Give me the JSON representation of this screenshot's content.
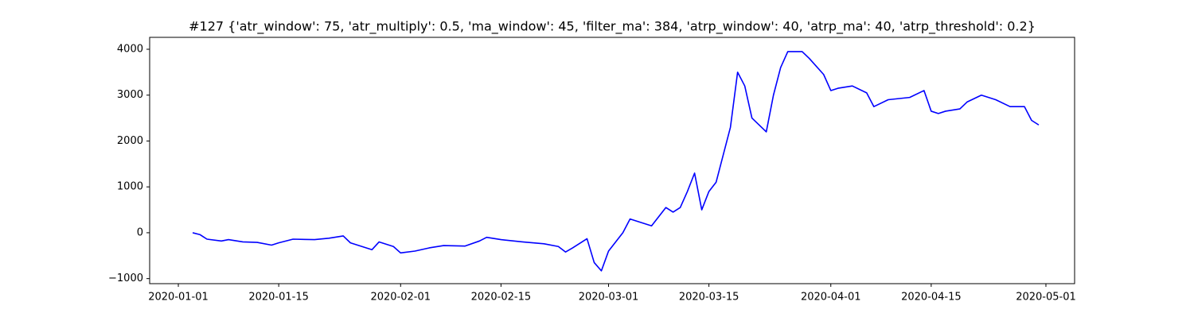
{
  "chart_data": {
    "type": "line",
    "title": "#127 {'atr_window': 75, 'atr_multiply': 0.5, 'ma_window': 45, 'filter_ma': 384, 'atrp_window': 40, 'atrp_ma': 40, 'atrp_threshold': 0.2}",
    "color": "#0000ff",
    "x": [
      "2020-01-03",
      "2020-01-04",
      "2020-01-05",
      "2020-01-07",
      "2020-01-08",
      "2020-01-10",
      "2020-01-12",
      "2020-01-14",
      "2020-01-15",
      "2020-01-17",
      "2020-01-20",
      "2020-01-22",
      "2020-01-24",
      "2020-01-25",
      "2020-01-28",
      "2020-01-29",
      "2020-01-31",
      "2020-02-01",
      "2020-02-03",
      "2020-02-05",
      "2020-02-07",
      "2020-02-10",
      "2020-02-12",
      "2020-02-13",
      "2020-02-15",
      "2020-02-18",
      "2020-02-21",
      "2020-02-23",
      "2020-02-24",
      "2020-02-25",
      "2020-02-27",
      "2020-02-28",
      "2020-02-29",
      "2020-03-01",
      "2020-03-03",
      "2020-03-04",
      "2020-03-05",
      "2020-03-07",
      "2020-03-09",
      "2020-03-10",
      "2020-03-11",
      "2020-03-12",
      "2020-03-13",
      "2020-03-14",
      "2020-03-15",
      "2020-03-16",
      "2020-03-17",
      "2020-03-18",
      "2020-03-19",
      "2020-03-20",
      "2020-03-21",
      "2020-03-23",
      "2020-03-24",
      "2020-03-25",
      "2020-03-26",
      "2020-03-28",
      "2020-03-29",
      "2020-03-31",
      "2020-04-01",
      "2020-04-02",
      "2020-04-04",
      "2020-04-06",
      "2020-04-07",
      "2020-04-09",
      "2020-04-12",
      "2020-04-14",
      "2020-04-15",
      "2020-04-16",
      "2020-04-17",
      "2020-04-19",
      "2020-04-20",
      "2020-04-22",
      "2020-04-24",
      "2020-04-26",
      "2020-04-28",
      "2020-04-29",
      "2020-04-30"
    ],
    "values": [
      0,
      -40,
      -140,
      -180,
      -150,
      -200,
      -210,
      -270,
      -220,
      -140,
      -150,
      -120,
      -70,
      -220,
      -370,
      -200,
      -300,
      -440,
      -400,
      -330,
      -280,
      -290,
      -180,
      -100,
      -150,
      -200,
      -240,
      -300,
      -420,
      -330,
      -130,
      -650,
      -830,
      -400,
      0,
      300,
      250,
      150,
      550,
      450,
      550,
      900,
      1300,
      500,
      900,
      1100,
      1700,
      2300,
      3500,
      3200,
      2500,
      2200,
      3000,
      3600,
      3950,
      3950,
      3800,
      3450,
      3100,
      3150,
      3200,
      3050,
      2750,
      2900,
      2950,
      3100,
      2650,
      2600,
      2650,
      2700,
      2850,
      3000,
      2900,
      2750,
      2750,
      2450,
      2350
    ],
    "xlim": [
      "2019-12-28",
      "2020-05-05"
    ],
    "xticks": [
      "2020-01-01",
      "2020-01-15",
      "2020-02-01",
      "2020-02-15",
      "2020-03-01",
      "2020-03-15",
      "2020-04-01",
      "2020-04-15",
      "2020-05-01"
    ],
    "ylim": [
      -1110,
      4260
    ],
    "yticks": [
      {
        "value": -1000,
        "label": "−1000"
      },
      0,
      1000,
      2000,
      3000,
      4000
    ]
  }
}
